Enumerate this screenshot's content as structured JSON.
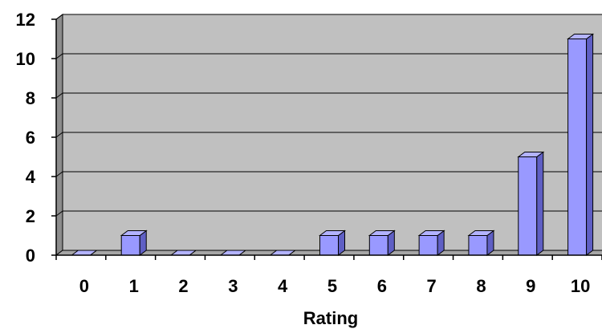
{
  "chart_data": {
    "type": "bar",
    "title": "",
    "xlabel": "Rating",
    "ylabel": "",
    "categories": [
      "0",
      "1",
      "2",
      "3",
      "4",
      "5",
      "6",
      "7",
      "8",
      "9",
      "10"
    ],
    "values": [
      0,
      1,
      0,
      0,
      0,
      1,
      1,
      1,
      1,
      5,
      11
    ],
    "ylim": [
      0,
      12
    ],
    "yticks": [
      "0",
      "2",
      "4",
      "6",
      "8",
      "10",
      "12"
    ],
    "grid": true,
    "style": "3d-column",
    "colors": {
      "plot_background": "#c0c0c0",
      "bar_front": "#9999ff",
      "bar_top": "#b3b3ff",
      "bar_side": "#5f5fc4",
      "wall_side": "#8c8c8c",
      "floor": "#a6a6a6"
    }
  }
}
